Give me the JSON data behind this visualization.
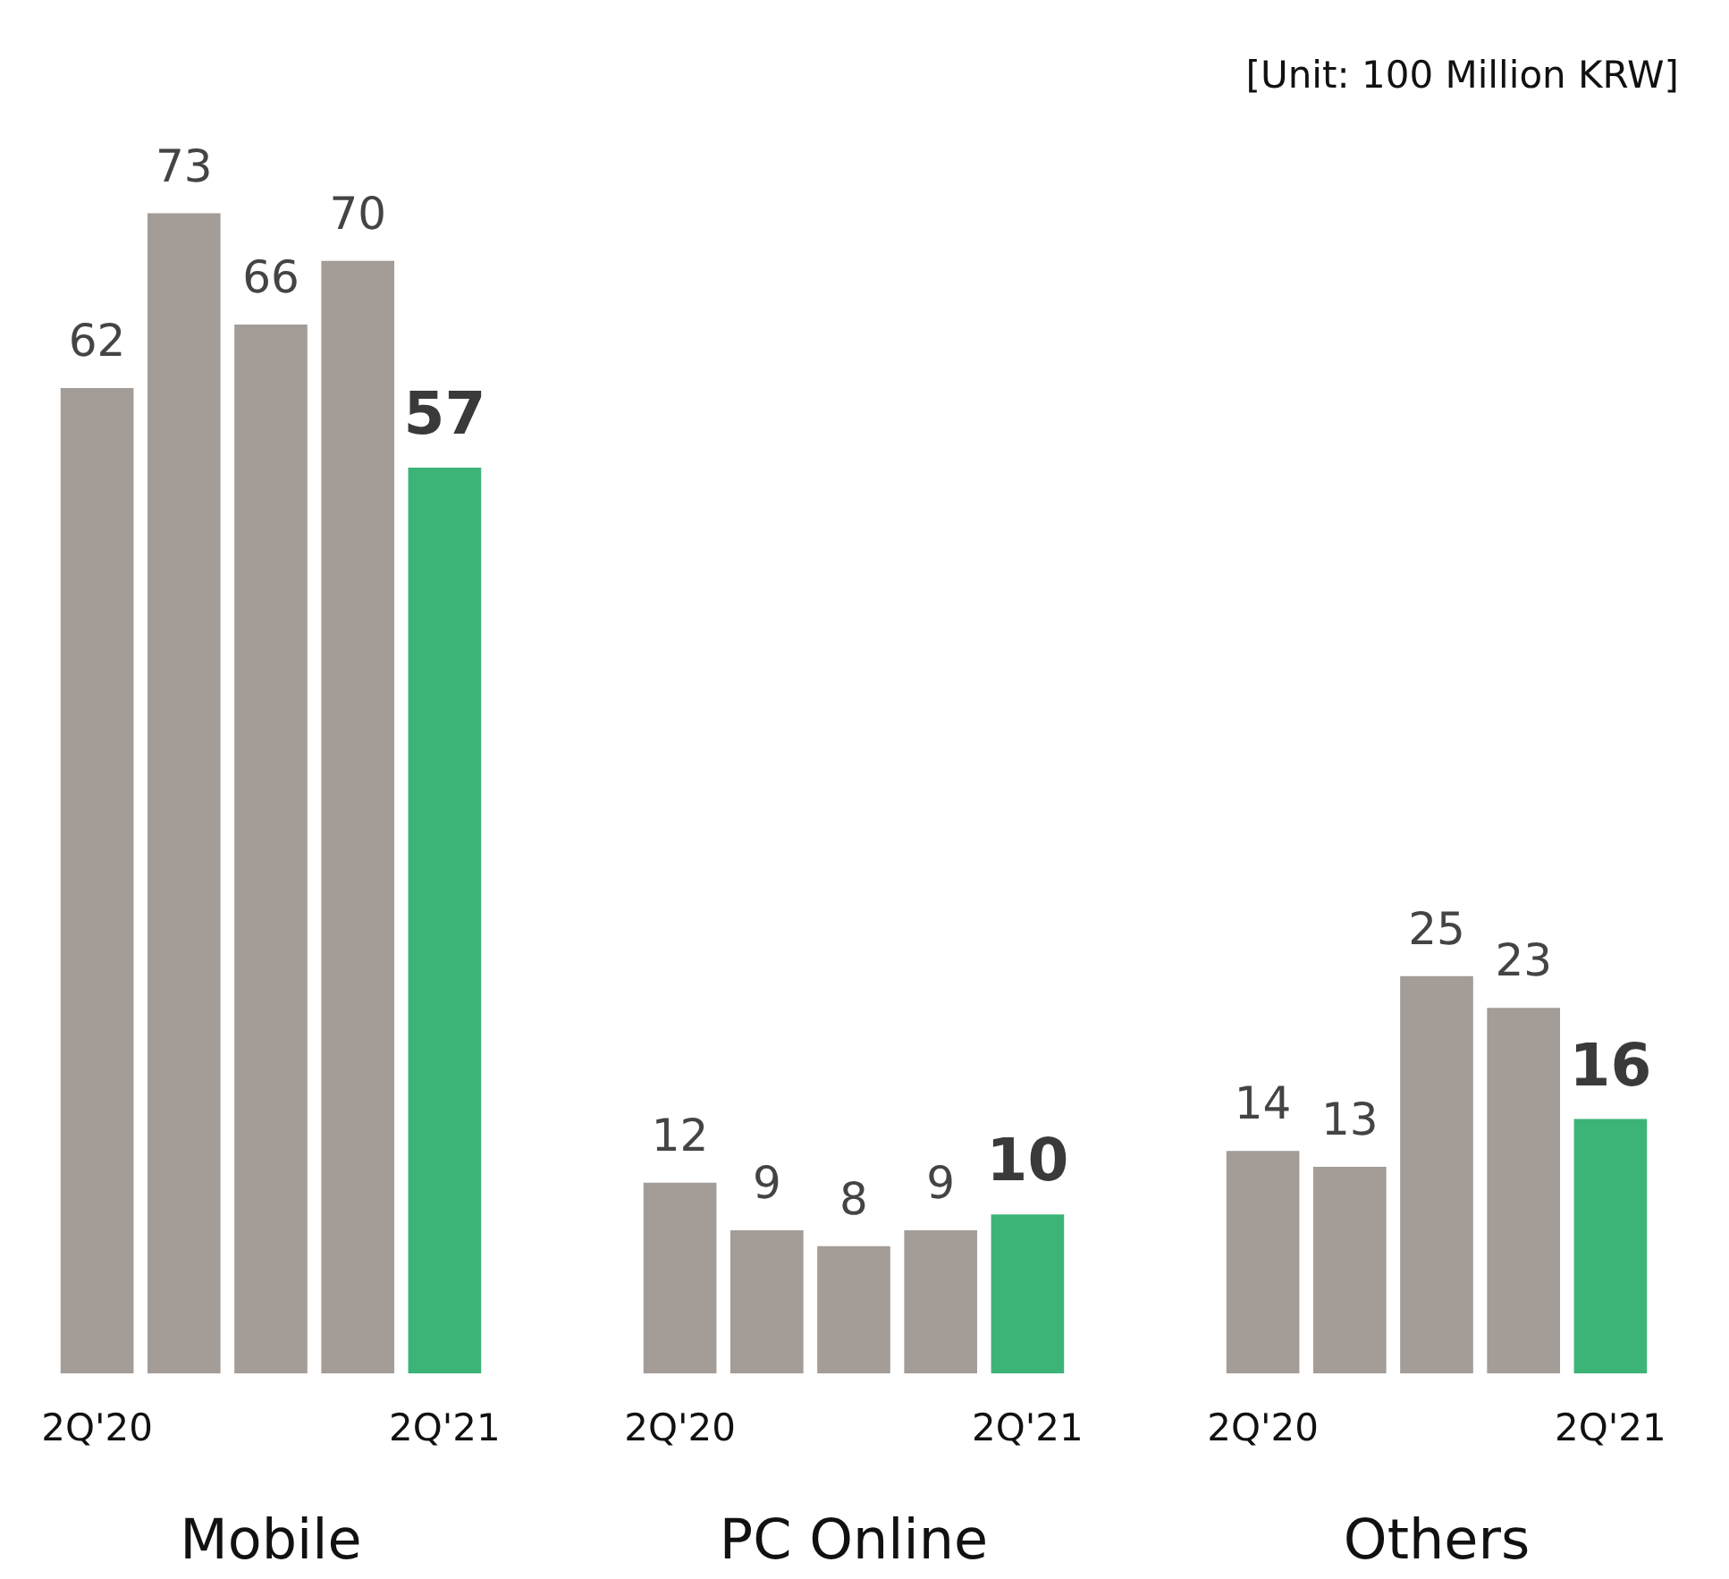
{
  "chart_data": [
    {
      "type": "bar",
      "xlabel": "Mobile",
      "categories": [
        "2Q'20",
        null,
        null,
        null,
        "2Q'21"
      ],
      "values": [
        62,
        73,
        66,
        70,
        57
      ],
      "colors": [
        "#a39c97",
        "#a39c97",
        "#a39c97",
        "#a39c97",
        "#3cb478"
      ],
      "data_labels": true,
      "annotations": [
        "[Unit: 100 Million KRW]"
      ]
    },
    {
      "type": "bar",
      "xlabel": "PC Online",
      "categories": [
        "2Q'20",
        null,
        null,
        null,
        "2Q'21"
      ],
      "values": [
        12,
        9,
        8,
        9,
        10
      ],
      "colors": [
        "#a39c97",
        "#a39c97",
        "#a39c97",
        "#a39c97",
        "#3cb478"
      ],
      "data_labels": true
    },
    {
      "type": "bar",
      "xlabel": "Others",
      "categories": [
        "2Q'20",
        null,
        null,
        null,
        "2Q'21"
      ],
      "values": [
        14,
        13,
        25,
        23,
        16
      ],
      "colors": [
        "#a39c97",
        "#a39c97",
        "#a39c97",
        "#a39c97",
        "#3cb478"
      ],
      "data_labels": true
    }
  ]
}
